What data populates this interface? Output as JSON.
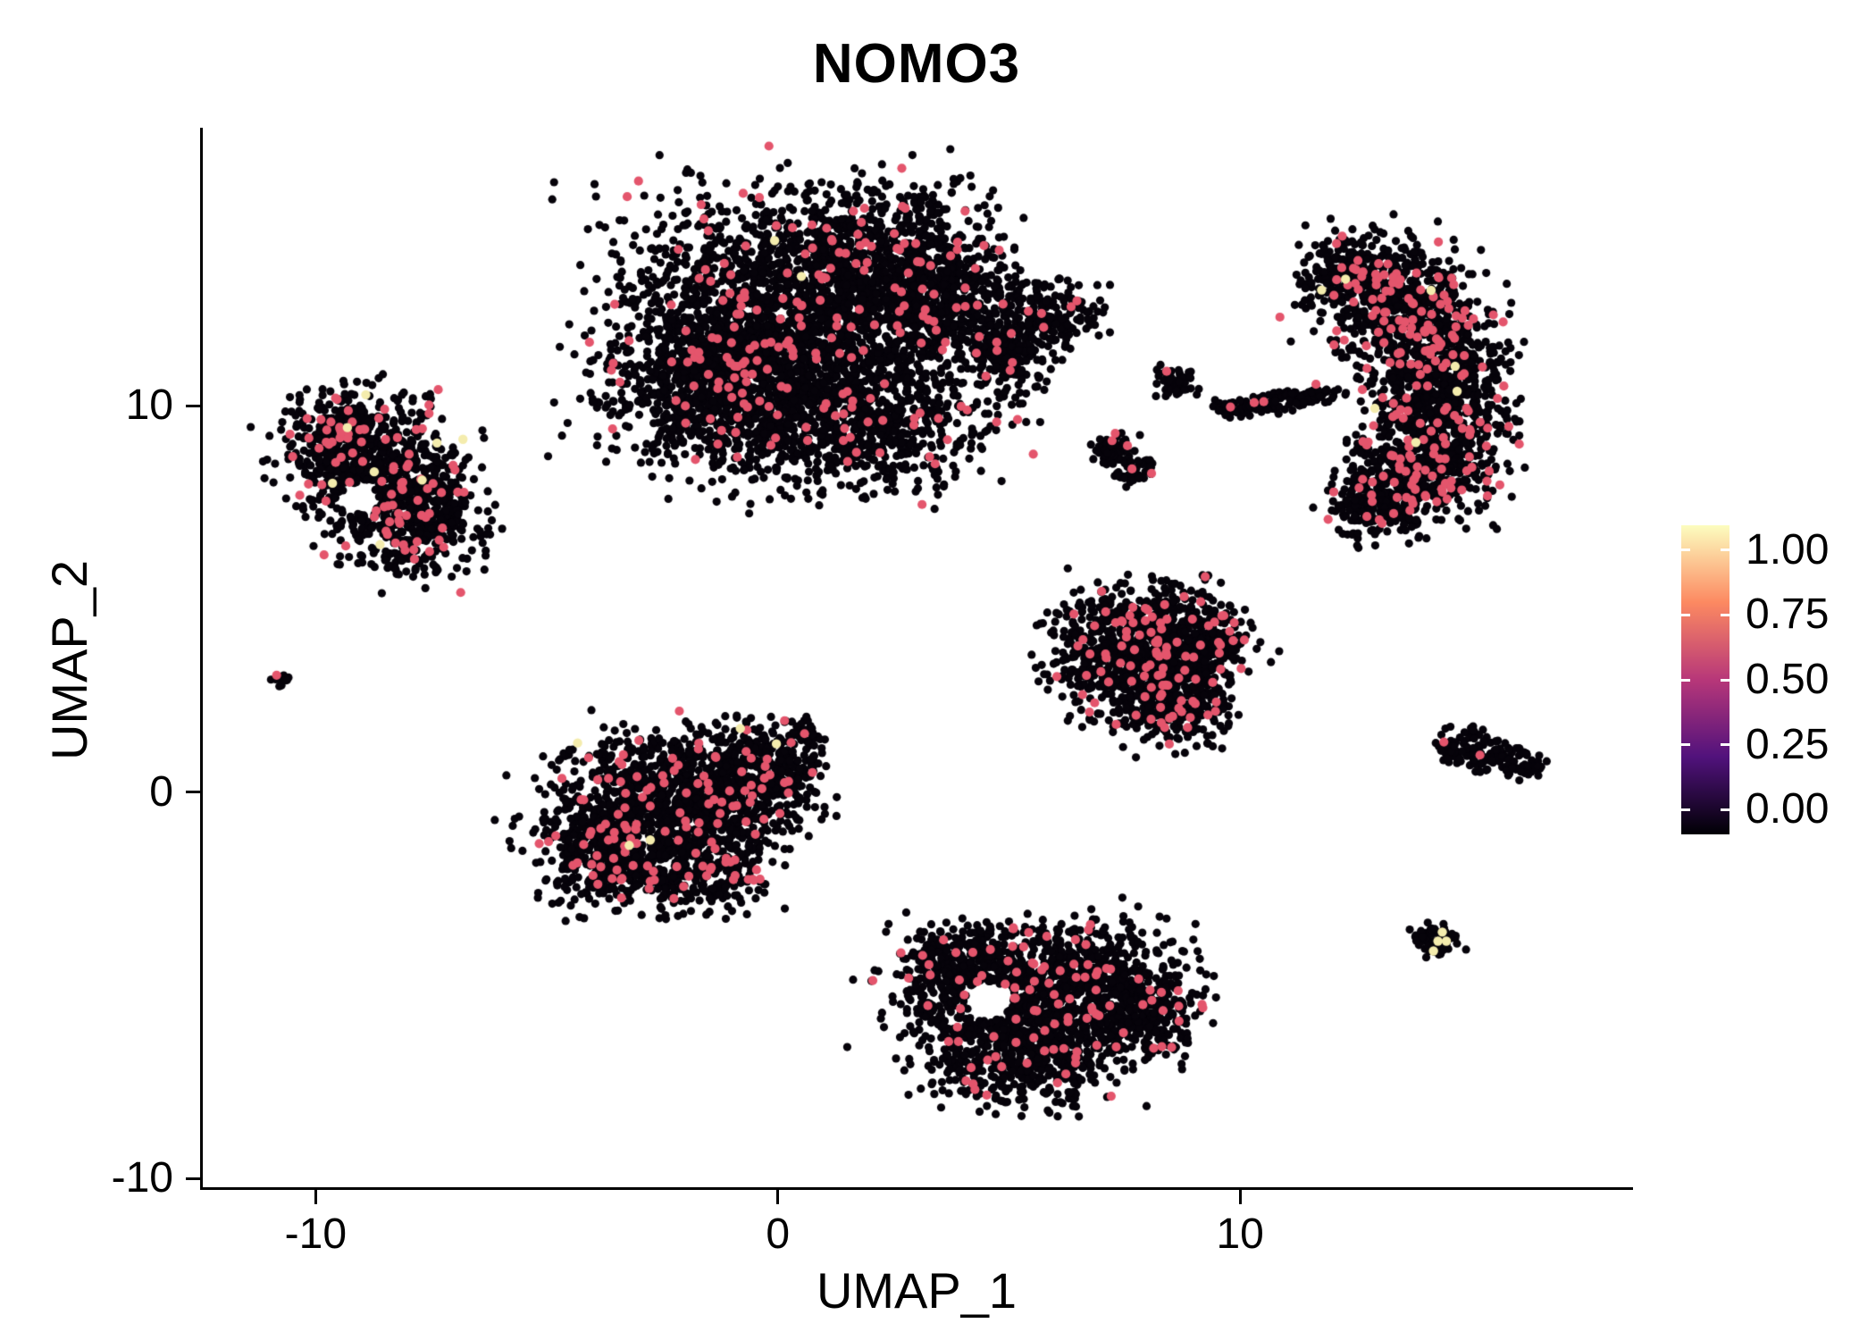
{
  "chart_data": {
    "type": "scatter",
    "title": "NOMO3",
    "xlabel": "UMAP_1",
    "ylabel": "UMAP_2",
    "xlim": [
      -12.5,
      18.5
    ],
    "ylim": [
      -10.3,
      17.2
    ],
    "xticks": [
      -10,
      0,
      10
    ],
    "yticks": [
      10,
      0,
      -10
    ],
    "grid": false,
    "legend_position": "right",
    "background": "#ffffff",
    "axis_color": "#000000",
    "point_radius_px": 4.6,
    "seed": 42,
    "colorbar": {
      "colormap": "magma",
      "tick_labels": [
        "1.00",
        "0.75",
        "0.50",
        "0.25",
        "0.00"
      ],
      "gradient_stops_top_to_bottom": [
        "#fcfdbf",
        "#fc8961",
        "#b73779",
        "#51127c",
        "#000004"
      ]
    },
    "expression_colors": {
      "zero": "#06030a",
      "low_mid": "#e4556c",
      "high": "#f4ecad"
    },
    "clusters": [
      {
        "name": "top-center-main",
        "expr_frac": 0.045,
        "high_frac": 0.0006,
        "blobs": [
          {
            "x": 0.3,
            "y": 11.9,
            "sx": 1.9,
            "sy": 1.7,
            "n": 2500
          },
          {
            "x": -1.6,
            "y": 10.4,
            "sx": 1.0,
            "sy": 0.9,
            "n": 600
          },
          {
            "x": 2.3,
            "y": 13.7,
            "sx": 1.2,
            "sy": 0.9,
            "n": 700
          },
          {
            "x": 1.7,
            "y": 9.4,
            "sx": 1.4,
            "sy": 0.7,
            "n": 500
          },
          {
            "x": 3.7,
            "y": 12.6,
            "sx": 0.8,
            "sy": 0.6,
            "n": 300
          },
          {
            "x": 4.9,
            "y": 11.4,
            "sx": 0.55,
            "sy": 0.45,
            "n": 220
          },
          {
            "x": 5.9,
            "y": 12.4,
            "sx": 0.5,
            "sy": 0.4,
            "n": 150
          }
        ],
        "holes": []
      },
      {
        "name": "left",
        "expr_frac": 0.06,
        "high_frac": 0.004,
        "blobs": [
          {
            "x": -8.9,
            "y": 8.6,
            "sx": 0.9,
            "sy": 0.8,
            "n": 550
          },
          {
            "x": -8.1,
            "y": 6.9,
            "sx": 0.8,
            "sy": 0.7,
            "n": 420
          },
          {
            "x": -9.6,
            "y": 9.3,
            "sx": 0.5,
            "sy": 0.5,
            "n": 180
          },
          {
            "x": -7.6,
            "y": 7.8,
            "sx": 0.5,
            "sy": 0.5,
            "n": 150
          }
        ],
        "holes": [
          {
            "x": -9.1,
            "y": 7.6,
            "r": 0.4
          }
        ]
      },
      {
        "name": "left-tiny",
        "expr_frac": 0.12,
        "high_frac": 0,
        "blobs": [
          {
            "x": -10.85,
            "y": 2.9,
            "sx": 0.12,
            "sy": 0.1,
            "n": 14
          }
        ],
        "holes": []
      },
      {
        "name": "center-left",
        "expr_frac": 0.06,
        "high_frac": 0.0012,
        "blobs": [
          {
            "x": -2.8,
            "y": -0.6,
            "sx": 1.2,
            "sy": 1.0,
            "n": 900
          },
          {
            "x": -1.2,
            "y": 0.1,
            "sx": 1.0,
            "sy": 0.8,
            "n": 550
          },
          {
            "x": -3.9,
            "y": -1.6,
            "sx": 0.6,
            "sy": 0.7,
            "n": 250
          },
          {
            "x": -0.2,
            "y": 0.7,
            "sx": 0.6,
            "sy": 0.5,
            "n": 200
          },
          {
            "x": 0.5,
            "y": 1.6,
            "sx": 0.18,
            "sy": 0.18,
            "n": 30
          },
          {
            "x": -1.9,
            "y": -2.2,
            "sx": 0.8,
            "sy": 0.5,
            "n": 220
          }
        ],
        "holes": []
      },
      {
        "name": "center-right",
        "expr_frac": 0.07,
        "high_frac": 0,
        "blobs": [
          {
            "x": 8.0,
            "y": 4.2,
            "sx": 1.0,
            "sy": 0.6,
            "n": 480
          },
          {
            "x": 7.5,
            "y": 3.2,
            "sx": 0.9,
            "sy": 0.7,
            "n": 430
          },
          {
            "x": 8.6,
            "y": 2.3,
            "sx": 0.6,
            "sy": 0.55,
            "n": 280
          },
          {
            "x": 9.3,
            "y": 3.6,
            "sx": 0.45,
            "sy": 0.45,
            "n": 150
          }
        ],
        "holes": []
      },
      {
        "name": "bottom-center",
        "expr_frac": 0.05,
        "high_frac": 0.0008,
        "blobs": [
          {
            "x": 4.6,
            "y": -5.7,
            "sx": 1.1,
            "sy": 1.0,
            "n": 650
          },
          {
            "x": 6.6,
            "y": -4.9,
            "sx": 1.0,
            "sy": 0.8,
            "n": 600
          },
          {
            "x": 5.6,
            "y": -6.9,
            "sx": 0.9,
            "sy": 0.6,
            "n": 380
          },
          {
            "x": 3.9,
            "y": -4.4,
            "sx": 0.6,
            "sy": 0.5,
            "n": 250
          },
          {
            "x": 7.9,
            "y": -5.8,
            "sx": 0.6,
            "sy": 0.6,
            "n": 250
          }
        ],
        "holes": [
          {
            "x": 4.5,
            "y": -5.4,
            "r": 0.5
          }
        ]
      },
      {
        "name": "right-large",
        "expr_frac": 0.1,
        "high_frac": 0.002,
        "blobs": [
          {
            "x": 13.0,
            "y": 13.1,
            "sx": 0.8,
            "sy": 0.7,
            "n": 420
          },
          {
            "x": 13.9,
            "y": 11.7,
            "sx": 0.8,
            "sy": 0.8,
            "n": 470
          },
          {
            "x": 14.3,
            "y": 10.0,
            "sx": 0.75,
            "sy": 0.8,
            "n": 470
          },
          {
            "x": 13.9,
            "y": 8.3,
            "sx": 0.8,
            "sy": 0.7,
            "n": 450
          },
          {
            "x": 12.9,
            "y": 7.4,
            "sx": 0.5,
            "sy": 0.45,
            "n": 180
          },
          {
            "x": 12.2,
            "y": 13.5,
            "sx": 0.4,
            "sy": 0.35,
            "n": 120
          }
        ],
        "holes": []
      },
      {
        "name": "mid-small-upper",
        "expr_frac": 0.02,
        "high_frac": 0,
        "blobs": [
          {
            "x": 8.5,
            "y": 10.6,
            "sx": 0.22,
            "sy": 0.18,
            "n": 55
          }
        ],
        "holes": []
      },
      {
        "name": "mid-streak",
        "expr_frac": 0.03,
        "high_frac": 0,
        "blobs": [
          {
            "x": 9.8,
            "y": 9.9,
            "sx": 0.22,
            "sy": 0.12,
            "n": 45
          },
          {
            "x": 10.5,
            "y": 10.05,
            "sx": 0.25,
            "sy": 0.12,
            "n": 55
          },
          {
            "x": 11.2,
            "y": 10.2,
            "sx": 0.22,
            "sy": 0.12,
            "n": 45
          },
          {
            "x": 11.7,
            "y": 10.3,
            "sx": 0.15,
            "sy": 0.1,
            "n": 25
          }
        ],
        "holes": []
      },
      {
        "name": "mid-small-lower",
        "expr_frac": 0.05,
        "high_frac": 0,
        "blobs": [
          {
            "x": 7.2,
            "y": 8.9,
            "sx": 0.25,
            "sy": 0.2,
            "n": 55
          },
          {
            "x": 7.7,
            "y": 8.3,
            "sx": 0.22,
            "sy": 0.2,
            "n": 45
          }
        ],
        "holes": []
      },
      {
        "name": "right-small",
        "expr_frac": 0.035,
        "high_frac": 0,
        "blobs": [
          {
            "x": 14.8,
            "y": 1.1,
            "sx": 0.3,
            "sy": 0.28,
            "n": 70
          },
          {
            "x": 15.5,
            "y": 0.9,
            "sx": 0.3,
            "sy": 0.22,
            "n": 60
          },
          {
            "x": 16.1,
            "y": 0.7,
            "sx": 0.2,
            "sy": 0.15,
            "n": 30
          }
        ],
        "holes": []
      },
      {
        "name": "right-tiny",
        "expr_frac": 0.01,
        "high_frac": 0.02,
        "blobs": [
          {
            "x": 14.2,
            "y": -3.8,
            "sx": 0.25,
            "sy": 0.22,
            "n": 70
          }
        ],
        "holes": []
      }
    ]
  }
}
